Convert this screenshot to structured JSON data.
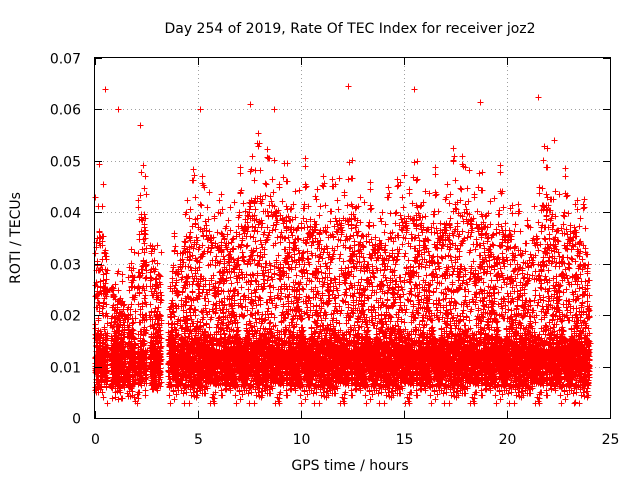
{
  "chart_data": {
    "type": "scatter",
    "title": "Day 254 of 2019, Rate Of TEC Index for receiver joz2",
    "xlabel": "GPS time / hours",
    "ylabel": "ROTI / TECUs",
    "xlim": [
      0,
      25
    ],
    "ylim": [
      0,
      0.07
    ],
    "x_ticks": [
      0,
      5,
      10,
      15,
      20,
      25
    ],
    "x_tick_labels": [
      "0",
      "5",
      "10",
      "15",
      "20",
      "25"
    ],
    "y_ticks": [
      0,
      0.01,
      0.02,
      0.03,
      0.04,
      0.05,
      0.06,
      0.07
    ],
    "y_tick_labels": [
      "0",
      "0.01",
      "0.02",
      "0.03",
      "0.04",
      "0.05",
      "0.06",
      "0.07"
    ],
    "grid": true,
    "marker": "+",
    "marker_color": "#ff0000",
    "series": [
      {
        "name": "ROTI",
        "x_range": [
          0,
          24
        ],
        "notable_points": [
          {
            "x": 0.5,
            "y": 0.064
          },
          {
            "x": 1.1,
            "y": 0.06
          },
          {
            "x": 2.2,
            "y": 0.057
          },
          {
            "x": 5.1,
            "y": 0.06
          },
          {
            "x": 7.5,
            "y": 0.061
          },
          {
            "x": 8.7,
            "y": 0.06
          },
          {
            "x": 12.3,
            "y": 0.0645
          },
          {
            "x": 15.5,
            "y": 0.064
          },
          {
            "x": 18.7,
            "y": 0.0615
          },
          {
            "x": 21.5,
            "y": 0.0625
          },
          {
            "x": 22.3,
            "y": 0.054
          },
          {
            "x": 23.3,
            "y": 0.0032
          }
        ],
        "bulk_y_range": [
          0.005,
          0.045
        ],
        "generator": {
          "seed": 254,
          "dt_hours": 0.0055,
          "gaps": [
            [
              0.6,
              0.75
            ],
            [
              1.45,
              1.55
            ],
            [
              1.95,
              2.05
            ],
            [
              2.5,
              2.65
            ],
            [
              3.2,
              3.55
            ],
            [
              4.05,
              4.1
            ]
          ],
          "envelope": [
            [
              0.0,
              0.045
            ],
            [
              0.25,
              0.052
            ],
            [
              0.6,
              0.038
            ],
            [
              1.0,
              0.03
            ],
            [
              1.6,
              0.028
            ],
            [
              2.2,
              0.054
            ],
            [
              2.8,
              0.04
            ],
            [
              3.6,
              0.033
            ],
            [
              4.4,
              0.045
            ],
            [
              5.0,
              0.051
            ],
            [
              6.0,
              0.044
            ],
            [
              7.0,
              0.049
            ],
            [
              7.7,
              0.056
            ],
            [
              8.5,
              0.055
            ],
            [
              9.5,
              0.05
            ],
            [
              10.2,
              0.051
            ],
            [
              11.0,
              0.047
            ],
            [
              11.8,
              0.05
            ],
            [
              12.4,
              0.052
            ],
            [
              13.2,
              0.047
            ],
            [
              14.0,
              0.043
            ],
            [
              14.8,
              0.05
            ],
            [
              15.4,
              0.052
            ],
            [
              16.2,
              0.05
            ],
            [
              17.0,
              0.048
            ],
            [
              17.6,
              0.055
            ],
            [
              18.5,
              0.05
            ],
            [
              19.1,
              0.048
            ],
            [
              19.8,
              0.05
            ],
            [
              20.5,
              0.042
            ],
            [
              21.2,
              0.04
            ],
            [
              21.7,
              0.056
            ],
            [
              22.4,
              0.05
            ],
            [
              23.2,
              0.048
            ],
            [
              24.0,
              0.04
            ]
          ],
          "base_mean": 0.011,
          "base_sd": 0.003
        }
      }
    ]
  }
}
